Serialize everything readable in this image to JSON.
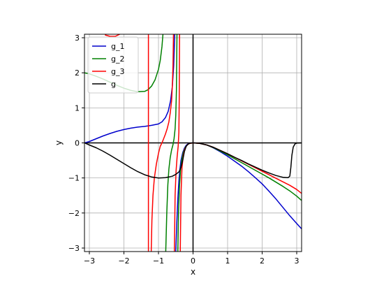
{
  "chart_data": {
    "type": "line",
    "xlabel": "x",
    "ylabel": "y",
    "xlim": [
      -3.14159,
      3.14159
    ],
    "ylim": [
      -3.1,
      3.1
    ],
    "xticks": [
      -3,
      -2,
      -1,
      0,
      1,
      2,
      3
    ],
    "yticks": [
      -3,
      -2,
      -1,
      0,
      1,
      2,
      3
    ],
    "xtick_labels": [
      "−3",
      "−2",
      "−1",
      "0",
      "1",
      "2",
      "3"
    ],
    "ytick_labels": [
      "−3",
      "−2",
      "−1",
      "0",
      "1",
      "2",
      "3"
    ],
    "grid": true,
    "legend_position": "top-left",
    "reference_lines": {
      "x": 0,
      "y": 0
    },
    "series": [
      {
        "name": "g_1",
        "color": "#0000cc",
        "segments": [
          [
            [
              -3.14,
              0
            ],
            [
              -3.0,
              0.04
            ],
            [
              -2.8,
              0.12
            ],
            [
              -2.6,
              0.2
            ],
            [
              -2.4,
              0.27
            ],
            [
              -2.2,
              0.33
            ],
            [
              -2.0,
              0.38
            ],
            [
              -1.8,
              0.42
            ],
            [
              -1.6,
              0.45
            ],
            [
              -1.4,
              0.47
            ],
            [
              -1.2,
              0.5
            ],
            [
              -1.0,
              0.54
            ],
            [
              -0.9,
              0.6
            ],
            [
              -0.8,
              0.72
            ],
            [
              -0.72,
              0.9
            ],
            [
              -0.65,
              1.2
            ],
            [
              -0.6,
              1.6
            ],
            [
              -0.56,
              2.2
            ],
            [
              -0.53,
              3.1
            ]
          ],
          [
            [
              -0.5,
              -3.1
            ],
            [
              -0.47,
              -2.3
            ],
            [
              -0.44,
              -1.6
            ],
            [
              -0.41,
              -1.1
            ],
            [
              -0.38,
              -0.75
            ],
            [
              -0.35,
              -0.5
            ],
            [
              -0.3,
              -0.28
            ],
            [
              -0.25,
              -0.15
            ],
            [
              -0.2,
              -0.07
            ],
            [
              -0.15,
              -0.03
            ],
            [
              -0.1,
              -0.01
            ],
            [
              0,
              0
            ],
            [
              0.1,
              -0.004
            ],
            [
              0.2,
              -0.016
            ],
            [
              0.4,
              -0.06
            ],
            [
              0.6,
              -0.15
            ],
            [
              0.8,
              -0.26
            ],
            [
              1.0,
              -0.38
            ],
            [
              1.2,
              -0.52
            ],
            [
              1.4,
              -0.66
            ],
            [
              1.6,
              -0.82
            ],
            [
              1.8,
              -0.99
            ],
            [
              2.0,
              -1.17
            ],
            [
              2.2,
              -1.38
            ],
            [
              2.4,
              -1.6
            ],
            [
              2.6,
              -1.84
            ],
            [
              2.8,
              -2.08
            ],
            [
              3.0,
              -2.3
            ],
            [
              3.14,
              -2.45
            ]
          ]
        ]
      },
      {
        "name": "g_2",
        "color": "#008000",
        "segments": [
          [
            [
              -3.14,
              2.0
            ],
            [
              -3.0,
              1.97
            ],
            [
              -2.8,
              1.9
            ],
            [
              -2.6,
              1.82
            ],
            [
              -2.4,
              1.73
            ],
            [
              -2.2,
              1.64
            ],
            [
              -2.0,
              1.56
            ],
            [
              -1.8,
              1.5
            ],
            [
              -1.6,
              1.46
            ],
            [
              -1.4,
              1.47
            ],
            [
              -1.3,
              1.52
            ],
            [
              -1.2,
              1.62
            ],
            [
              -1.1,
              1.8
            ],
            [
              -1.0,
              2.1
            ],
            [
              -0.95,
              2.35
            ],
            [
              -0.9,
              2.75
            ],
            [
              -0.87,
              3.1
            ]
          ],
          [
            [
              -0.79,
              -3.1
            ],
            [
              -0.76,
              -2.0
            ],
            [
              -0.73,
              -1.2
            ],
            [
              -0.7,
              -0.75
            ],
            [
              -0.66,
              -0.42
            ],
            [
              -0.62,
              -0.2
            ],
            [
              -0.58,
              -0.05
            ],
            [
              -0.55,
              0.12
            ],
            [
              -0.52,
              0.4
            ],
            [
              -0.5,
              0.8
            ],
            [
              -0.48,
              1.5
            ],
            [
              -0.465,
              3.1
            ]
          ],
          [
            [
              -0.44,
              -3.1
            ],
            [
              -0.42,
              -2.0
            ],
            [
              -0.39,
              -1.2
            ],
            [
              -0.36,
              -0.75
            ],
            [
              -0.32,
              -0.45
            ],
            [
              -0.28,
              -0.27
            ],
            [
              -0.22,
              -0.12
            ],
            [
              -0.16,
              -0.05
            ],
            [
              -0.1,
              -0.015
            ],
            [
              0,
              0
            ],
            [
              0.2,
              -0.015
            ],
            [
              0.4,
              -0.06
            ],
            [
              0.6,
              -0.14
            ],
            [
              0.8,
              -0.24
            ],
            [
              1.0,
              -0.34
            ],
            [
              1.2,
              -0.45
            ],
            [
              1.4,
              -0.56
            ],
            [
              1.6,
              -0.67
            ],
            [
              1.8,
              -0.78
            ],
            [
              2.0,
              -0.89
            ],
            [
              2.2,
              -1.0
            ],
            [
              2.4,
              -1.12
            ],
            [
              2.6,
              -1.24
            ],
            [
              2.8,
              -1.37
            ],
            [
              3.0,
              -1.52
            ],
            [
              3.14,
              -1.64
            ]
          ]
        ]
      },
      {
        "name": "g_3",
        "color": "#ff0000",
        "segments": [
          [
            [
              -2.55,
              3.08
            ],
            [
              -2.4,
              3.04
            ],
            [
              -2.25,
              3.04
            ],
            [
              -2.12,
              3.1
            ]
          ],
          [
            [
              -1.29,
              -3.1
            ],
            [
              -1.29,
              3.1
            ]
          ],
          [
            [
              -1.21,
              -3.1
            ],
            [
              -1.19,
              -2.2
            ],
            [
              -1.16,
              -1.5
            ],
            [
              -1.12,
              -1.0
            ],
            [
              -1.06,
              -0.6
            ],
            [
              -1.0,
              -0.3
            ],
            [
              -0.95,
              -0.1
            ],
            [
              -0.9,
              0.0
            ],
            [
              -0.85,
              0.12
            ],
            [
              -0.8,
              0.25
            ],
            [
              -0.75,
              0.4
            ],
            [
              -0.7,
              0.6
            ],
            [
              -0.66,
              0.85
            ],
            [
              -0.62,
              1.2
            ],
            [
              -0.6,
              1.6
            ],
            [
              -0.58,
              2.2
            ],
            [
              -0.565,
              3.1
            ]
          ],
          [
            [
              -0.54,
              -3.1
            ],
            [
              -0.52,
              -1.5
            ],
            [
              -0.49,
              -0.8
            ],
            [
              -0.46,
              -0.4
            ],
            [
              -0.43,
              -0.1
            ],
            [
              -0.41,
              0.3
            ],
            [
              -0.4,
              1.2
            ],
            [
              -0.39,
              3.1
            ]
          ],
          [
            [
              -0.37,
              -3.1
            ],
            [
              -0.35,
              -1.5
            ],
            [
              -0.32,
              -0.7
            ],
            [
              -0.28,
              -0.35
            ],
            [
              -0.24,
              -0.18
            ],
            [
              -0.18,
              -0.07
            ],
            [
              -0.12,
              -0.02
            ],
            [
              0,
              0
            ],
            [
              0.2,
              -0.015
            ],
            [
              0.4,
              -0.06
            ],
            [
              0.6,
              -0.13
            ],
            [
              0.8,
              -0.22
            ],
            [
              1.0,
              -0.31
            ],
            [
              1.2,
              -0.41
            ],
            [
              1.4,
              -0.51
            ],
            [
              1.6,
              -0.61
            ],
            [
              1.8,
              -0.71
            ],
            [
              2.0,
              -0.81
            ],
            [
              2.2,
              -0.91
            ],
            [
              2.4,
              -1.01
            ],
            [
              2.6,
              -1.11
            ],
            [
              2.8,
              -1.21
            ],
            [
              3.0,
              -1.33
            ],
            [
              3.14,
              -1.44
            ]
          ]
        ]
      },
      {
        "name": "g",
        "color": "#000000",
        "segments": [
          [
            [
              -3.14,
              0
            ],
            [
              -3.0,
              -0.06
            ],
            [
              -2.8,
              -0.14
            ],
            [
              -2.6,
              -0.24
            ],
            [
              -2.4,
              -0.35
            ],
            [
              -2.2,
              -0.47
            ],
            [
              -2.0,
              -0.59
            ],
            [
              -1.8,
              -0.71
            ],
            [
              -1.6,
              -0.82
            ],
            [
              -1.4,
              -0.91
            ],
            [
              -1.2,
              -0.97
            ],
            [
              -1.0,
              -1.0
            ],
            [
              -0.8,
              -0.99
            ],
            [
              -0.6,
              -0.95
            ],
            [
              -0.5,
              -0.9
            ],
            [
              -0.4,
              -0.82
            ],
            [
              -0.35,
              -0.7
            ],
            [
              -0.3,
              -0.5
            ],
            [
              -0.25,
              -0.25
            ],
            [
              -0.2,
              -0.1
            ],
            [
              -0.15,
              -0.04
            ],
            [
              -0.1,
              -0.01
            ],
            [
              0,
              0
            ],
            [
              0.2,
              -0.015
            ],
            [
              0.4,
              -0.06
            ],
            [
              0.6,
              -0.13
            ],
            [
              0.8,
              -0.22
            ],
            [
              1.0,
              -0.31
            ],
            [
              1.2,
              -0.41
            ],
            [
              1.4,
              -0.5
            ],
            [
              1.6,
              -0.6
            ],
            [
              1.8,
              -0.69
            ],
            [
              2.0,
              -0.78
            ],
            [
              2.2,
              -0.86
            ],
            [
              2.4,
              -0.93
            ],
            [
              2.6,
              -0.98
            ],
            [
              2.75,
              -0.99
            ],
            [
              2.8,
              -0.95
            ],
            [
              2.83,
              -0.7
            ],
            [
              2.86,
              -0.35
            ],
            [
              2.9,
              -0.12
            ],
            [
              2.95,
              -0.03
            ],
            [
              3.0,
              -0.005
            ],
            [
              3.14,
              0
            ]
          ]
        ]
      }
    ]
  }
}
